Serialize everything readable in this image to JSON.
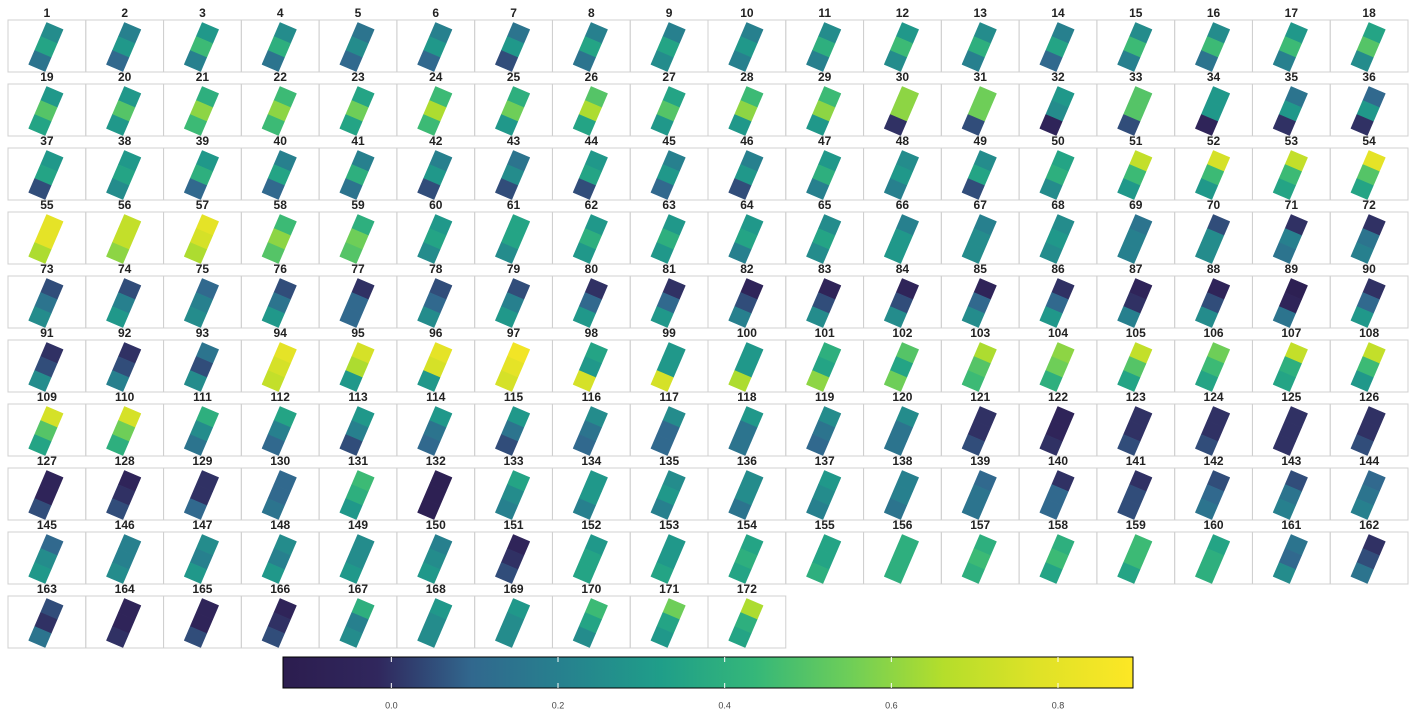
{
  "chart_data": {
    "type": "facet-raster",
    "categories": [
      "1",
      "2",
      "3",
      "4",
      "5",
      "6",
      "7",
      "8",
      "9",
      "10",
      "11",
      "12",
      "13",
      "14",
      "15",
      "16",
      "17",
      "18",
      "19",
      "20",
      "21",
      "22",
      "23",
      "24",
      "25",
      "26",
      "27",
      "28",
      "29",
      "30",
      "31",
      "32",
      "33",
      "34",
      "35",
      "36",
      "37",
      "38",
      "39",
      "40",
      "41",
      "42",
      "43",
      "44",
      "45",
      "46",
      "47",
      "48",
      "49",
      "50",
      "51",
      "52",
      "53",
      "54",
      "55",
      "56",
      "57",
      "58",
      "59",
      "60",
      "61",
      "62",
      "63",
      "64",
      "65",
      "66",
      "67",
      "68",
      "69",
      "70",
      "71",
      "72",
      "73",
      "74",
      "75",
      "76",
      "77",
      "78",
      "79",
      "80",
      "81",
      "82",
      "83",
      "84",
      "85",
      "86",
      "87",
      "88",
      "89",
      "90",
      "91",
      "92",
      "93",
      "94",
      "95",
      "96",
      "97",
      "98",
      "99",
      "100",
      "101",
      "102",
      "103",
      "104",
      "105",
      "106",
      "107",
      "108",
      "109",
      "110",
      "111",
      "112",
      "113",
      "114",
      "115",
      "116",
      "117",
      "118",
      "119",
      "120",
      "121",
      "122",
      "123",
      "124",
      "125",
      "126",
      "127",
      "128",
      "129",
      "130",
      "131",
      "132",
      "133",
      "134",
      "135",
      "136",
      "137",
      "138",
      "139",
      "140",
      "141",
      "142",
      "143",
      "144",
      "145",
      "146",
      "147",
      "148",
      "149",
      "150",
      "151",
      "152",
      "153",
      "154",
      "155",
      "156",
      "157",
      "158",
      "159",
      "160",
      "161",
      "162",
      "163",
      "164",
      "165",
      "166",
      "167",
      "168",
      "169",
      "170",
      "171",
      "172"
    ],
    "values": [
      [
        0.25,
        0.35,
        0.15
      ],
      [
        0.2,
        0.3,
        0.1
      ],
      [
        0.3,
        0.45,
        0.2
      ],
      [
        0.25,
        0.4,
        0.15
      ],
      [
        0.15,
        0.25,
        0.1
      ],
      [
        0.2,
        0.3,
        0.1
      ],
      [
        0.15,
        0.3,
        0.05
      ],
      [
        0.2,
        0.35,
        0.15
      ],
      [
        0.2,
        0.35,
        0.25
      ],
      [
        0.2,
        0.3,
        0.2
      ],
      [
        0.25,
        0.4,
        0.2
      ],
      [
        0.3,
        0.45,
        0.25
      ],
      [
        0.25,
        0.4,
        0.2
      ],
      [
        0.2,
        0.35,
        0.1
      ],
      [
        0.25,
        0.45,
        0.2
      ],
      [
        0.25,
        0.45,
        0.15
      ],
      [
        0.3,
        0.45,
        0.2
      ],
      [
        0.35,
        0.5,
        0.25
      ],
      [
        0.3,
        0.5,
        0.35
      ],
      [
        0.3,
        0.5,
        0.3
      ],
      [
        0.4,
        0.6,
        0.45
      ],
      [
        0.45,
        0.6,
        0.45
      ],
      [
        0.35,
        0.55,
        0.35
      ],
      [
        0.45,
        0.65,
        0.45
      ],
      [
        0.4,
        0.55,
        0.3
      ],
      [
        0.5,
        0.65,
        0.35
      ],
      [
        0.35,
        0.5,
        0.3
      ],
      [
        0.45,
        0.6,
        0.3
      ],
      [
        0.45,
        0.6,
        0.3
      ],
      [
        0.6,
        0.6,
        0.0
      ],
      [
        0.55,
        0.55,
        0.05
      ],
      [
        0.3,
        0.25,
        -0.05
      ],
      [
        0.5,
        0.5,
        0.05
      ],
      [
        0.3,
        0.3,
        -0.05
      ],
      [
        0.15,
        0.3,
        0.0
      ],
      [
        0.1,
        0.3,
        0.0
      ],
      [
        0.3,
        0.35,
        0.05
      ],
      [
        0.3,
        0.35,
        0.25
      ],
      [
        0.3,
        0.4,
        0.1
      ],
      [
        0.2,
        0.35,
        0.1
      ],
      [
        0.2,
        0.4,
        0.15
      ],
      [
        0.2,
        0.3,
        0.05
      ],
      [
        0.15,
        0.25,
        0.05
      ],
      [
        0.3,
        0.35,
        0.05
      ],
      [
        0.2,
        0.3,
        0.1
      ],
      [
        0.2,
        0.3,
        0.05
      ],
      [
        0.3,
        0.4,
        0.2
      ],
      [
        0.25,
        0.3,
        0.2
      ],
      [
        0.25,
        0.35,
        0.05
      ],
      [
        0.35,
        0.4,
        0.25
      ],
      [
        0.7,
        0.45,
        0.3
      ],
      [
        0.75,
        0.45,
        0.3
      ],
      [
        0.7,
        0.45,
        0.35
      ],
      [
        0.8,
        0.5,
        0.35
      ],
      [
        0.8,
        0.8,
        0.65
      ],
      [
        0.7,
        0.7,
        0.6
      ],
      [
        0.8,
        0.75,
        0.65
      ],
      [
        0.45,
        0.6,
        0.5
      ],
      [
        0.4,
        0.55,
        0.5
      ],
      [
        0.3,
        0.35,
        0.25
      ],
      [
        0.35,
        0.35,
        0.25
      ],
      [
        0.3,
        0.4,
        0.3
      ],
      [
        0.3,
        0.4,
        0.3
      ],
      [
        0.3,
        0.35,
        0.2
      ],
      [
        0.25,
        0.35,
        0.25
      ],
      [
        0.2,
        0.3,
        0.3
      ],
      [
        0.2,
        0.25,
        0.25
      ],
      [
        0.25,
        0.3,
        0.25
      ],
      [
        0.15,
        0.2,
        0.2
      ],
      [
        0.05,
        0.25,
        0.25
      ],
      [
        0.0,
        0.2,
        0.15
      ],
      [
        0.0,
        0.15,
        0.2
      ],
      [
        0.05,
        0.15,
        0.25
      ],
      [
        0.05,
        0.2,
        0.3
      ],
      [
        0.1,
        0.2,
        0.25
      ],
      [
        0.05,
        0.15,
        0.3
      ],
      [
        0.0,
        0.1,
        0.1
      ],
      [
        0.05,
        0.1,
        0.25
      ],
      [
        0.05,
        0.2,
        0.3
      ],
      [
        0.0,
        0.1,
        0.3
      ],
      [
        0.0,
        0.1,
        0.3
      ],
      [
        -0.05,
        0.05,
        0.2
      ],
      [
        -0.05,
        0.05,
        0.25
      ],
      [
        -0.05,
        0.05,
        0.25
      ],
      [
        -0.05,
        0.1,
        0.25
      ],
      [
        0.0,
        0.1,
        0.3
      ],
      [
        -0.05,
        0.0,
        0.2
      ],
      [
        -0.05,
        0.05,
        0.25
      ],
      [
        -0.1,
        -0.05,
        0.15
      ],
      [
        0.0,
        0.1,
        0.3
      ],
      [
        0.0,
        0.05,
        0.25
      ],
      [
        0.0,
        0.05,
        0.2
      ],
      [
        0.15,
        0.05,
        0.25
      ],
      [
        0.8,
        0.75,
        0.7
      ],
      [
        0.75,
        0.65,
        0.3
      ],
      [
        0.8,
        0.75,
        0.3
      ],
      [
        0.85,
        0.8,
        0.75
      ],
      [
        0.35,
        0.3,
        0.75
      ],
      [
        0.3,
        0.3,
        0.75
      ],
      [
        0.3,
        0.3,
        0.65
      ],
      [
        0.4,
        0.35,
        0.6
      ],
      [
        0.5,
        0.35,
        0.55
      ],
      [
        0.65,
        0.5,
        0.45
      ],
      [
        0.6,
        0.55,
        0.4
      ],
      [
        0.7,
        0.5,
        0.35
      ],
      [
        0.55,
        0.45,
        0.35
      ],
      [
        0.7,
        0.4,
        0.35
      ],
      [
        0.7,
        0.45,
        0.3
      ],
      [
        0.75,
        0.5,
        0.35
      ],
      [
        0.75,
        0.55,
        0.4
      ],
      [
        0.4,
        0.25,
        0.15
      ],
      [
        0.35,
        0.2,
        0.1
      ],
      [
        0.3,
        0.2,
        0.05
      ],
      [
        0.3,
        0.15,
        0.1
      ],
      [
        0.3,
        0.15,
        0.05
      ],
      [
        0.25,
        0.15,
        0.1
      ],
      [
        0.25,
        0.1,
        0.1
      ],
      [
        0.3,
        0.15,
        0.15
      ],
      [
        0.25,
        0.15,
        0.1
      ],
      [
        0.25,
        0.15,
        0.15
      ],
      [
        0.0,
        0.0,
        0.05
      ],
      [
        -0.05,
        -0.05,
        0.0
      ],
      [
        0.0,
        0.0,
        0.05
      ],
      [
        0.0,
        0.0,
        0.05
      ],
      [
        0.0,
        0.0,
        0.0
      ],
      [
        0.0,
        0.0,
        0.05
      ],
      [
        -0.05,
        -0.05,
        0.05
      ],
      [
        -0.05,
        0.0,
        0.05
      ],
      [
        0.0,
        0.0,
        0.1
      ],
      [
        0.1,
        0.1,
        0.15
      ],
      [
        0.45,
        0.4,
        0.3
      ],
      [
        -0.1,
        -0.1,
        -0.1
      ],
      [
        0.35,
        0.25,
        0.2
      ],
      [
        0.3,
        0.3,
        0.2
      ],
      [
        0.25,
        0.3,
        0.2
      ],
      [
        0.25,
        0.25,
        0.15
      ],
      [
        0.3,
        0.25,
        0.2
      ],
      [
        0.2,
        0.2,
        0.15
      ],
      [
        0.1,
        0.15,
        0.15
      ],
      [
        0.0,
        0.1,
        0.1
      ],
      [
        0.0,
        0.05,
        0.05
      ],
      [
        0.05,
        0.1,
        0.15
      ],
      [
        0.05,
        0.15,
        0.2
      ],
      [
        0.1,
        0.15,
        0.2
      ],
      [
        0.1,
        0.25,
        0.3
      ],
      [
        0.2,
        0.2,
        0.25
      ],
      [
        0.25,
        0.2,
        0.3
      ],
      [
        0.25,
        0.2,
        0.3
      ],
      [
        0.25,
        0.25,
        0.3
      ],
      [
        0.2,
        0.25,
        0.3
      ],
      [
        -0.05,
        0.0,
        0.05
      ],
      [
        0.3,
        0.35,
        0.35
      ],
      [
        0.3,
        0.3,
        0.35
      ],
      [
        0.35,
        0.4,
        0.35
      ],
      [
        0.35,
        0.35,
        0.4
      ],
      [
        0.4,
        0.4,
        0.4
      ],
      [
        0.4,
        0.45,
        0.4
      ],
      [
        0.4,
        0.45,
        0.35
      ],
      [
        0.45,
        0.45,
        0.35
      ],
      [
        0.35,
        0.4,
        0.4
      ],
      [
        0.15,
        0.1,
        0.25
      ],
      [
        0.0,
        0.05,
        0.15
      ],
      [
        0.05,
        0.0,
        0.15
      ],
      [
        -0.05,
        -0.05,
        0.0
      ],
      [
        -0.05,
        -0.05,
        0.05
      ],
      [
        -0.05,
        0.0,
        0.05
      ],
      [
        0.4,
        0.2,
        0.25
      ],
      [
        0.3,
        0.25,
        0.25
      ],
      [
        0.3,
        0.25,
        0.25
      ],
      [
        0.45,
        0.35,
        0.25
      ],
      [
        0.55,
        0.35,
        0.3
      ],
      [
        0.65,
        0.4,
        0.35
      ]
    ],
    "columns": 18,
    "colorbar": {
      "lim": [
        -0.13,
        0.89
      ],
      "ticks": [
        {
          "value": 0,
          "label": "0.0"
        },
        {
          "value": 0.2,
          "label": "0.2"
        },
        {
          "value": 0.4,
          "label": "0.4"
        },
        {
          "value": 0.6,
          "label": "0.6"
        },
        {
          "value": 0.8,
          "label": "0.8"
        }
      ],
      "colors": [
        "#2c1d4f",
        "#30275d",
        "#31688e",
        "#26828e",
        "#1f9e89",
        "#35b779",
        "#6ece58",
        "#b5de2b",
        "#dfe227",
        "#fde725"
      ]
    }
  }
}
